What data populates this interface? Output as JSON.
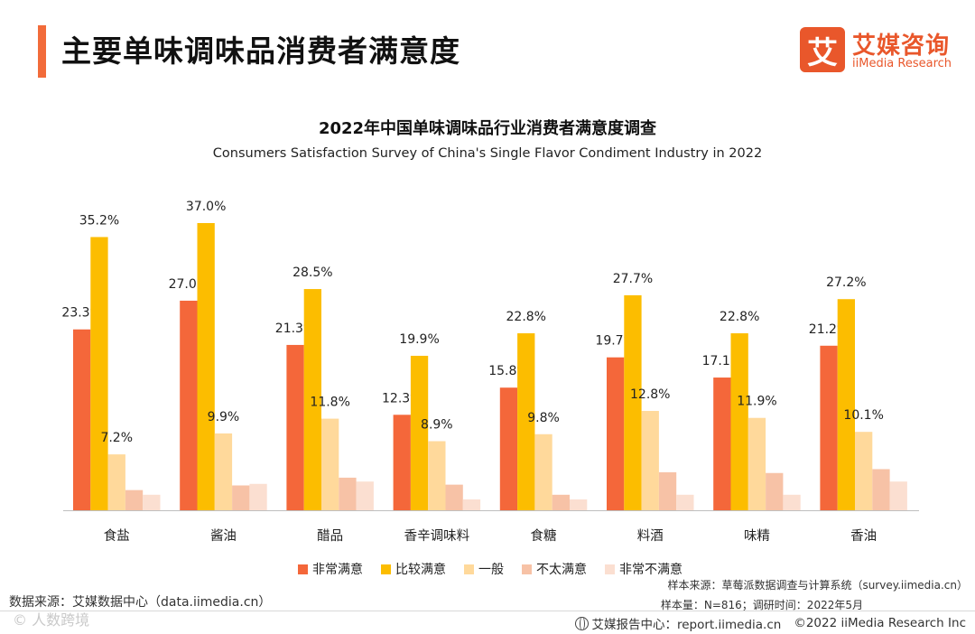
{
  "page": {
    "title": "主要单味调味品消费者满意度"
  },
  "logo": {
    "mark": "艾",
    "name_cn": "艾媒咨询",
    "name_en": "iiMedia Research"
  },
  "chart_data": {
    "type": "bar",
    "title": "2022年中国单味调味品行业消费者满意度调查",
    "subtitle": "Consumers Satisfaction Survey of China's Single Flavor Condiment Industry in 2022",
    "categories": [
      "食盐",
      "酱油",
      "醋品",
      "香辛调味料",
      "食糖",
      "料酒",
      "味精",
      "香油"
    ],
    "series": [
      {
        "name": "非常满意",
        "color": "#f4673a",
        "values": [
          23.3,
          27.0,
          21.3,
          12.3,
          15.8,
          19.7,
          17.1,
          21.2
        ],
        "labeled": true
      },
      {
        "name": "比较满意",
        "color": "#fcbd00",
        "values": [
          35.2,
          37.0,
          28.5,
          19.9,
          22.8,
          27.7,
          22.8,
          27.2
        ],
        "labeled": true
      },
      {
        "name": "一般",
        "color": "#ffd99b",
        "values": [
          7.2,
          9.9,
          11.8,
          8.9,
          9.8,
          12.8,
          11.9,
          10.1
        ],
        "labeled": true
      },
      {
        "name": "不太满意",
        "color": "#f7c2a6",
        "values": [
          2.6,
          3.2,
          4.2,
          3.3,
          2.0,
          4.9,
          4.8,
          5.3
        ],
        "labeled": false
      },
      {
        "name": "非常不满意",
        "color": "#fbdfd1",
        "values": [
          2.0,
          3.4,
          3.7,
          1.4,
          1.4,
          2.0,
          2.0,
          3.7
        ],
        "labeled": false
      }
    ],
    "label_format": "%",
    "ylim": [
      0,
      40
    ],
    "grid": false,
    "legend_position": "bottom"
  },
  "sources": {
    "left": "数据来源：艾媒数据中心（data.iimedia.cn）",
    "right_line1": "样本来源：草莓派数据调查与计算系统（survey.iimedia.cn）",
    "right_line2": "样本量：N=816；调研时间：2022年5月"
  },
  "watermark": "© 人数跨境",
  "footer": {
    "report_center": "艾媒报告中心：report.iimedia.cn",
    "copyright": "©2022  iiMedia Research  Inc"
  }
}
